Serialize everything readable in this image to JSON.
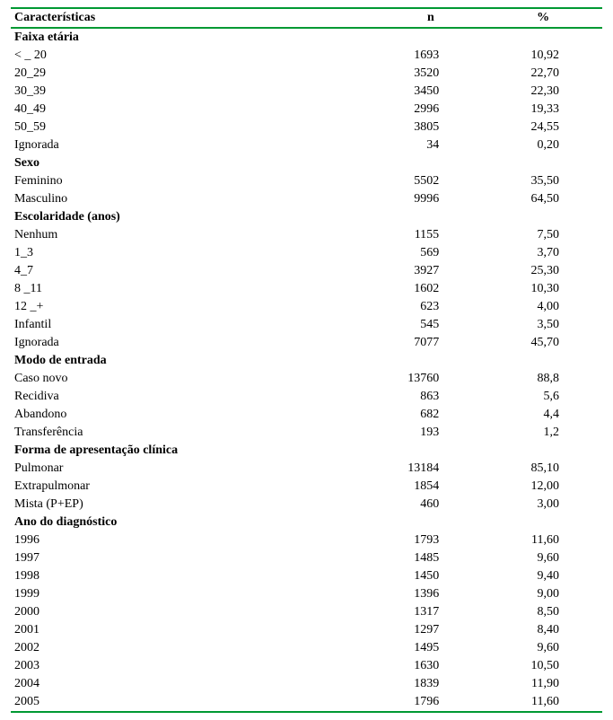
{
  "columns": {
    "characteristics": "Características",
    "n": "n",
    "pct": "%"
  },
  "sections": [
    {
      "title": "Faixa etária",
      "rows": [
        {
          "label": "< _ 20",
          "n": "1693",
          "pct": "10,92"
        },
        {
          "label": "20_29",
          "n": "3520",
          "pct": "22,70"
        },
        {
          "label": "30_39",
          "n": "3450",
          "pct": "22,30"
        },
        {
          "label": "40_49",
          "n": "2996",
          "pct": "19,33"
        },
        {
          "label": "50_59",
          "n": "3805",
          "pct": "24,55"
        },
        {
          "label": "Ignorada",
          "n": "34",
          "pct": "0,20"
        }
      ]
    },
    {
      "title": "Sexo",
      "rows": [
        {
          "label": "Feminino",
          "n": "5502",
          "pct": "35,50"
        },
        {
          "label": "Masculino",
          "n": "9996",
          "pct": "64,50"
        }
      ]
    },
    {
      "title": "Escolaridade (anos)",
      "rows": [
        {
          "label": "Nenhum",
          "n": "1155",
          "pct": "7,50"
        },
        {
          "label": "1_3",
          "n": "569",
          "pct": "3,70"
        },
        {
          "label": "4_7",
          "n": "3927",
          "pct": "25,30"
        },
        {
          "label": "8 _11",
          "n": "1602",
          "pct": "10,30"
        },
        {
          "label": "12 _+",
          "n": "623",
          "pct": "4,00"
        },
        {
          "label": "Infantil",
          "n": "545",
          "pct": "3,50"
        },
        {
          "label": "Ignorada",
          "n": "7077",
          "pct": "45,70"
        }
      ]
    },
    {
      "title": "Modo de entrada",
      "rows": [
        {
          "label": "Caso novo",
          "n": "13760",
          "pct": "88,8"
        },
        {
          "label": "Recidiva",
          "n": "863",
          "pct": "5,6"
        },
        {
          "label": "Abandono",
          "n": "682",
          "pct": "4,4"
        },
        {
          "label": "Transferência",
          "n": "193",
          "pct": "1,2"
        }
      ]
    },
    {
      "title": "Forma de apresentação clínica",
      "rows": [
        {
          "label": "Pulmonar",
          "n": "13184",
          "pct": "85,10"
        },
        {
          "label": "Extrapulmonar",
          "n": "1854",
          "pct": "12,00"
        },
        {
          "label": "Mista (P+EP)",
          "n": "460",
          "pct": "3,00"
        }
      ]
    },
    {
      "title": "Ano do diagnóstico",
      "rows": [
        {
          "label": "1996",
          "n": "1793",
          "pct": "11,60"
        },
        {
          "label": "1997",
          "n": "1485",
          "pct": "9,60"
        },
        {
          "label": "1998",
          "n": "1450",
          "pct": "9,40"
        },
        {
          "label": "1999",
          "n": "1396",
          "pct": "9,00"
        },
        {
          "label": "2000",
          "n": "1317",
          "pct": "8,50"
        },
        {
          "label": "2001",
          "n": "1297",
          "pct": "8,40"
        },
        {
          "label": "2002",
          "n": "1495",
          "pct": "9,60"
        },
        {
          "label": "2003",
          "n": "1630",
          "pct": "10,50"
        },
        {
          "label": "2004",
          "n": "1839",
          "pct": "11,90"
        },
        {
          "label": "2005",
          "n": "1796",
          "pct": "11,60"
        }
      ]
    }
  ]
}
